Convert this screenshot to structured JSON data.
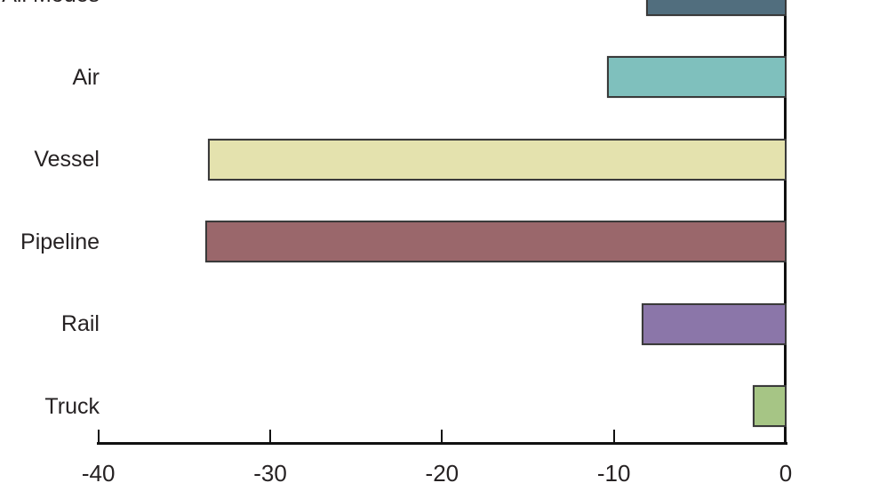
{
  "chart_data": {
    "type": "bar",
    "orientation": "horizontal",
    "title": "",
    "xlabel": "",
    "ylabel": "",
    "categories": [
      "All Modes",
      "Air",
      "Vessel",
      "Pipeline",
      "Rail",
      "Truck"
    ],
    "values": [
      -8.1,
      -10.4,
      -33.6,
      -33.8,
      -8.4,
      -1.9
    ],
    "colors": [
      "#516e7e",
      "#7fc0bd",
      "#e4e2ae",
      "#9a676b",
      "#8b76a9",
      "#a6c585"
    ],
    "bar_border_color": "#3a3a3a",
    "axis_color": "#111111",
    "text_color": "#262223",
    "xlim": [
      -40,
      0
    ],
    "x_ticks": [
      -40,
      -30,
      -20,
      -10,
      0
    ],
    "x_tick_labels": [
      "-40",
      "-30",
      "-20",
      "-10",
      "0"
    ],
    "grid": false,
    "legend": false,
    "notes": "top category row (All Modes) is partially cropped at top edge of image"
  }
}
